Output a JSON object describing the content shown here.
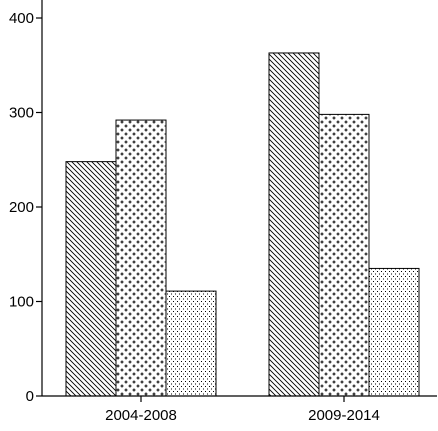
{
  "chart_data": {
    "type": "bar",
    "title": "",
    "xlabel": "",
    "ylabel": "",
    "categories": [
      "2004-2008",
      "2009-2014"
    ],
    "series": [
      {
        "values": [
          248,
          363
        ],
        "pattern": "diagonal-hatch"
      },
      {
        "values": [
          292,
          298
        ],
        "pattern": "cross-dots"
      },
      {
        "values": [
          111,
          135
        ],
        "pattern": "fine-dots"
      }
    ],
    "ylim": [
      0,
      400
    ],
    "yticks": [
      0,
      100,
      200,
      300,
      400
    ],
    "grid": false,
    "legend": "none",
    "colors": {
      "stroke": "#000000",
      "fill": "#ffffff"
    }
  }
}
